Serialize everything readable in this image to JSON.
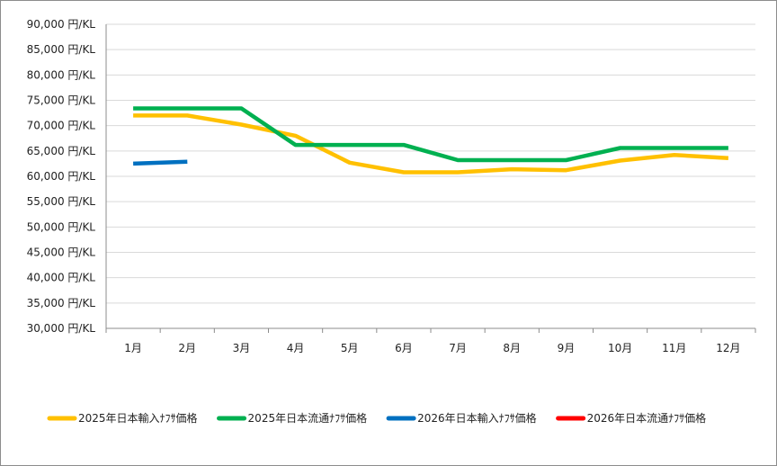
{
  "chart_data": {
    "type": "line",
    "title": "",
    "xlabel": "",
    "ylabel": "",
    "categories": [
      "1月",
      "2月",
      "3月",
      "4月",
      "5月",
      "6月",
      "7月",
      "8月",
      "9月",
      "10月",
      "11月",
      "12月"
    ],
    "ylim": [
      30000,
      90000
    ],
    "yticks": [
      {
        "value": 90000,
        "label": "90,000 円/KL"
      },
      {
        "value": 85000,
        "label": "85,000 円/KL"
      },
      {
        "value": 80000,
        "label": "80,000 円/KL"
      },
      {
        "value": 75000,
        "label": "75,000 円/KL"
      },
      {
        "value": 70000,
        "label": "70,000 円/KL"
      },
      {
        "value": 65000,
        "label": "65,000 円/KL"
      },
      {
        "value": 60000,
        "label": "60,000 円/KL"
      },
      {
        "value": 55000,
        "label": "55,000 円/KL"
      },
      {
        "value": 50000,
        "label": "50,000 円/KL"
      },
      {
        "value": 45000,
        "label": "45,000 円/KL"
      },
      {
        "value": 40000,
        "label": "40,000 円/KL"
      },
      {
        "value": 35000,
        "label": "35,000 円/KL"
      },
      {
        "value": 30000,
        "label": "30,000 円/KL"
      }
    ],
    "grid": true,
    "legend_position": "bottom",
    "series": [
      {
        "name": "2025年日本輸入ﾅﾌｻ価格",
        "color": "#FFC000",
        "values": [
          72000,
          72000,
          70200,
          68000,
          62700,
          60800,
          60800,
          61400,
          61200,
          63100,
          64200,
          63600
        ]
      },
      {
        "name": "2025年日本流通ﾅﾌｻ価格",
        "color": "#00B050",
        "values": [
          73400,
          73400,
          73400,
          66200,
          66200,
          66200,
          63200,
          63200,
          63200,
          65600,
          65600,
          65600
        ]
      },
      {
        "name": "2026年日本輸入ﾅﾌｻ価格",
        "color": "#0070C0",
        "values": [
          62500,
          62900,
          null,
          null,
          null,
          null,
          null,
          null,
          null,
          null,
          null,
          null
        ]
      },
      {
        "name": "2026年日本流通ﾅﾌｻ価格",
        "color": "#FF0000",
        "values": [
          null,
          null,
          null,
          null,
          null,
          null,
          null,
          null,
          null,
          null,
          null,
          null
        ]
      }
    ]
  }
}
